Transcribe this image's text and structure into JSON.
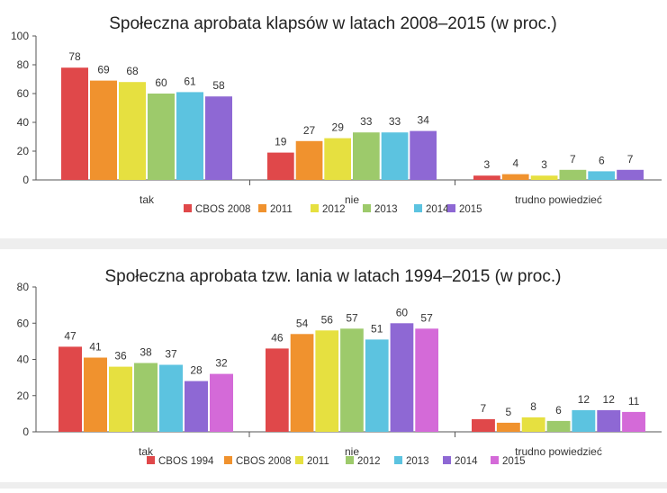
{
  "chart_data": [
    {
      "type": "bar",
      "title": "Społeczna aprobata klapsów w latach 2008–2015 (w proc.)",
      "categories": [
        "tak",
        "nie",
        "trudno powiedzieć"
      ],
      "ylim": [
        0,
        100
      ],
      "yticks": [
        "0",
        "20",
        "40",
        "60",
        "80",
        "100"
      ],
      "grid": false,
      "legend_position": "bottom",
      "series": [
        {
          "name": "CBOS 2008",
          "color": "#e0484a",
          "values": [
            78,
            19,
            3
          ]
        },
        {
          "name": "2011",
          "color": "#f0922e",
          "values": [
            69,
            27,
            4
          ]
        },
        {
          "name": "2012",
          "color": "#e6e040",
          "values": [
            68,
            29,
            3
          ]
        },
        {
          "name": "2013",
          "color": "#9dca6b",
          "values": [
            60,
            33,
            7
          ]
        },
        {
          "name": "2014",
          "color": "#5cc3e0",
          "values": [
            61,
            33,
            6
          ]
        },
        {
          "name": "2015",
          "color": "#8e68d4",
          "values": [
            58,
            34,
            7
          ]
        }
      ]
    },
    {
      "type": "bar",
      "title": "Społeczna aprobata tzw. lania w latach 1994–2015 (w proc.)",
      "categories": [
        "tak",
        "nie",
        "trudno powiedzieć"
      ],
      "ylim": [
        0,
        80
      ],
      "yticks": [
        "0",
        "20",
        "40",
        "60",
        "80"
      ],
      "grid": false,
      "legend_position": "bottom",
      "series": [
        {
          "name": "CBOS 1994",
          "color": "#e0484a",
          "values": [
            47,
            46,
            7
          ]
        },
        {
          "name": "CBOS 2008",
          "color": "#f0922e",
          "values": [
            41,
            54,
            5
          ]
        },
        {
          "name": "2011",
          "color": "#e6e040",
          "values": [
            36,
            56,
            8
          ]
        },
        {
          "name": "2012",
          "color": "#9dca6b",
          "values": [
            38,
            57,
            6
          ]
        },
        {
          "name": "2013",
          "color": "#5cc3e0",
          "values": [
            37,
            51,
            12
          ]
        },
        {
          "name": "2014",
          "color": "#8e68d4",
          "values": [
            28,
            60,
            12
          ]
        },
        {
          "name": "2015",
          "color": "#d46ad8",
          "values": [
            32,
            57,
            11
          ]
        }
      ]
    }
  ]
}
